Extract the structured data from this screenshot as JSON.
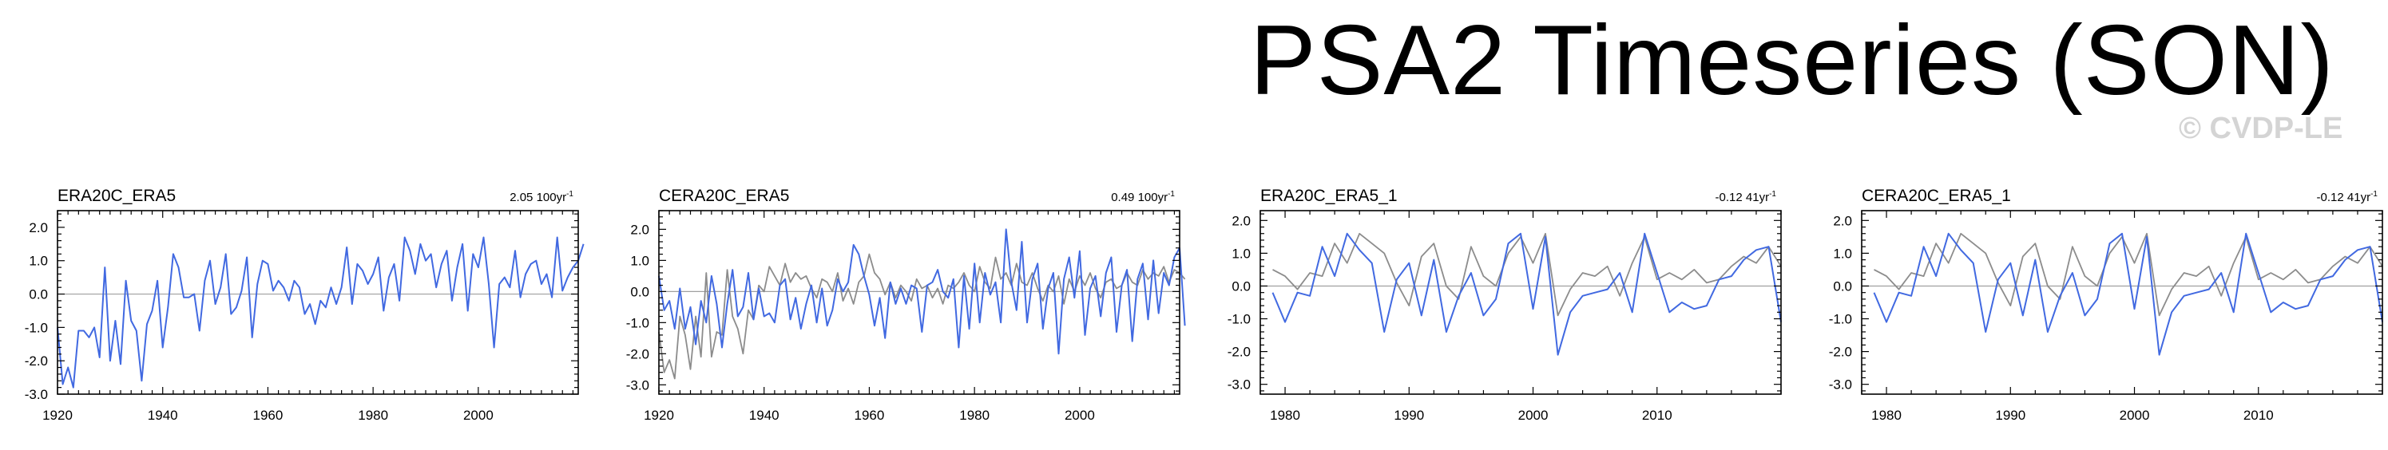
{
  "page": {
    "title": "PSA2 Timeseries (SON)",
    "watermark": "© CVDP-LE"
  },
  "colors": {
    "blue": "#4169e1",
    "gray": "#8c8c8c",
    "zero_line": "#a0a0a0"
  },
  "chart_data": [
    {
      "type": "line",
      "title": "ERA20C_ERA5",
      "trend_text": "2.05 100yr",
      "trend_exp": "-1",
      "xlim": [
        1920,
        2019
      ],
      "ylim": [
        -3.0,
        2.5
      ],
      "xticks": [
        "1920",
        "1940",
        "1960",
        "1980",
        "2000"
      ],
      "xtick_values": [
        1920,
        1940,
        1960,
        1980,
        2000
      ],
      "yticks": [
        "2.0",
        "1.0",
        "0.0",
        "-1.0",
        "-2.0",
        "-3.0"
      ],
      "ytick_values": [
        2.0,
        1.0,
        0.0,
        -1.0,
        -2.0,
        -3.0
      ],
      "series": [
        {
          "color": "#4169e1",
          "x_start": 1920,
          "values": [
            -1.0,
            -2.7,
            -2.2,
            -2.8,
            -1.1,
            -1.1,
            -1.3,
            -1.0,
            -1.9,
            0.8,
            -2.0,
            -0.8,
            -2.1,
            0.4,
            -0.8,
            -1.1,
            -2.6,
            -0.9,
            -0.5,
            0.4,
            -1.6,
            -0.4,
            1.2,
            0.8,
            -0.1,
            -0.1,
            0.0,
            -1.1,
            0.4,
            1.0,
            -0.3,
            0.2,
            1.2,
            -0.6,
            -0.4,
            0.1,
            1.1,
            -1.3,
            0.3,
            1.0,
            0.9,
            0.1,
            0.4,
            0.2,
            -0.2,
            0.4,
            0.2,
            -0.6,
            -0.3,
            -0.9,
            -0.2,
            -0.4,
            0.2,
            -0.3,
            0.2,
            1.4,
            -0.3,
            0.9,
            0.7,
            0.3,
            0.6,
            1.1,
            -0.5,
            0.5,
            0.9,
            -0.2,
            1.7,
            1.3,
            0.6,
            1.5,
            1.0,
            1.2,
            0.2,
            0.9,
            1.3,
            -0.2,
            0.8,
            1.5,
            -0.5,
            1.2,
            0.8,
            1.7,
            0.3,
            -1.6,
            0.3,
            0.5,
            0.2,
            1.3,
            -0.1,
            0.6,
            0.9,
            1.0,
            0.3,
            0.6,
            -0.1,
            1.7,
            0.1,
            0.5,
            0.8,
            1.0,
            1.5
          ]
        }
      ]
    },
    {
      "type": "line",
      "title": "CERA20C_ERA5",
      "trend_text": "0.49 100yr",
      "trend_exp": "-1",
      "xlim": [
        1920,
        2019
      ],
      "ylim": [
        -3.3,
        2.6
      ],
      "xticks": [
        "1920",
        "1940",
        "1960",
        "1980",
        "2000"
      ],
      "xtick_values": [
        1920,
        1940,
        1960,
        1980,
        2000
      ],
      "yticks": [
        "2.0",
        "1.0",
        "0.0",
        "-1.0",
        "-2.0",
        "-3.0"
      ],
      "ytick_values": [
        2.0,
        1.0,
        0.0,
        -1.0,
        -2.0,
        -3.0
      ],
      "series": [
        {
          "color": "#8c8c8c",
          "x_start": 1920,
          "values": [
            -1.3,
            -2.6,
            -2.2,
            -2.8,
            -0.8,
            -1.4,
            -2.5,
            -0.8,
            -2.1,
            0.6,
            -2.1,
            -1.3,
            -1.4,
            0.7,
            -0.8,
            -1.2,
            -2.0,
            -0.6,
            -0.9,
            0.2,
            0.0,
            0.8,
            0.5,
            0.2,
            0.9,
            0.3,
            0.6,
            0.4,
            0.5,
            0.1,
            -0.2,
            0.4,
            0.3,
            0.0,
            0.6,
            -0.3,
            0.1,
            -0.4,
            0.3,
            0.5,
            1.2,
            0.6,
            0.4,
            -0.1,
            0.3,
            -0.2,
            0.2,
            0.0,
            -0.3,
            0.4,
            0.1,
            0.2,
            -0.2,
            0.1,
            -0.4,
            0.2,
            0.1,
            0.3,
            0.6,
            0.2,
            0.0,
            0.8,
            0.3,
            0.1,
            1.1,
            0.4,
            0.6,
            0.2,
            0.9,
            0.3,
            0.2,
            0.6,
            0.1,
            -0.3,
            0.2,
            0.0,
            0.5,
            -0.4,
            0.4,
            0.0,
            0.5,
            0.2,
            0.6,
            0.1,
            -0.2,
            0.3,
            0.4,
            0.1,
            0.2,
            0.6,
            0.3,
            0.2,
            0.7,
            0.4,
            0.6,
            0.5,
            0.8,
            0.3,
            0.7,
            0.6,
            0.4
          ]
        },
        {
          "color": "#4169e1",
          "x_start": 1920,
          "values": [
            0.5,
            -0.6,
            -0.3,
            -1.2,
            0.1,
            -1.2,
            -0.5,
            -1.7,
            -0.3,
            -1.0,
            0.5,
            -0.4,
            -1.8,
            -0.4,
            0.7,
            -0.8,
            -0.5,
            0.6,
            -0.9,
            0.1,
            -0.8,
            -0.7,
            -1.0,
            0.2,
            0.4,
            -0.9,
            -0.2,
            -1.2,
            -0.4,
            0.2,
            -1.0,
            0.1,
            -1.1,
            -0.6,
            0.4,
            0.0,
            0.3,
            1.5,
            1.2,
            0.5,
            -0.1,
            -1.1,
            -0.2,
            -1.5,
            0.3,
            -0.4,
            0.1,
            -0.4,
            0.2,
            0.1,
            -1.3,
            0.2,
            0.3,
            0.7,
            0.0,
            -0.2,
            0.4,
            -1.8,
            0.5,
            -1.2,
            0.9,
            -1.0,
            0.6,
            -0.1,
            0.3,
            -1.0,
            2.0,
            0.3,
            -0.6,
            1.6,
            -1.0,
            0.4,
            0.9,
            -1.2,
            0.1,
            0.6,
            -2.0,
            0.4,
            1.1,
            -0.2,
            1.3,
            -1.4,
            0.1,
            0.5,
            -0.8,
            0.6,
            1.1,
            -1.3,
            0.2,
            0.7,
            -1.6,
            0.4,
            0.9,
            -0.9,
            1.0,
            -0.7,
            0.6,
            0.2,
            1.1,
            1.4,
            -1.1
          ]
        }
      ]
    },
    {
      "type": "line",
      "title": "ERA20C_ERA5_1",
      "trend_text": "-0.12 41yr",
      "trend_exp": "-1",
      "xlim": [
        1978,
        2020
      ],
      "ylim": [
        -3.3,
        2.3
      ],
      "xticks": [
        "1980",
        "1990",
        "2000",
        "2010"
      ],
      "xtick_values": [
        1980,
        1990,
        2000,
        2010
      ],
      "yticks": [
        "2.0",
        "1.0",
        "0.0",
        "-1.0",
        "-2.0",
        "-3.0"
      ],
      "ytick_values": [
        2.0,
        1.0,
        0.0,
        -1.0,
        -2.0,
        -3.0
      ],
      "series": [
        {
          "color": "#8c8c8c",
          "x_start": 1979,
          "values": [
            0.5,
            0.3,
            -0.1,
            0.4,
            0.3,
            1.3,
            0.7,
            1.6,
            1.3,
            1.0,
            0.1,
            -0.6,
            0.9,
            1.3,
            0.0,
            -0.4,
            1.2,
            0.3,
            0.0,
            1.0,
            1.5,
            0.7,
            1.6,
            -0.9,
            -0.1,
            0.4,
            0.3,
            0.6,
            -0.3,
            0.7,
            1.5,
            0.2,
            0.4,
            0.2,
            0.5,
            0.1,
            0.2,
            0.6,
            0.9,
            0.7,
            1.2,
            0.6
          ]
        },
        {
          "color": "#4169e1",
          "x_start": 1979,
          "values": [
            -0.2,
            -1.1,
            -0.2,
            -0.3,
            1.2,
            0.3,
            1.6,
            1.1,
            0.7,
            -1.4,
            0.2,
            0.7,
            -0.9,
            0.8,
            -1.4,
            -0.3,
            0.4,
            -0.9,
            -0.4,
            1.3,
            1.6,
            -0.7,
            1.5,
            -2.1,
            -0.8,
            -0.3,
            -0.2,
            -0.1,
            0.4,
            -0.8,
            1.6,
            0.4,
            -0.8,
            -0.5,
            -0.7,
            -0.6,
            0.2,
            0.3,
            0.8,
            1.1,
            1.2,
            -1.1
          ]
        }
      ]
    },
    {
      "type": "line",
      "title": "CERA20C_ERA5_1",
      "trend_text": "-0.12 41yr",
      "trend_exp": "-1",
      "xlim": [
        1978,
        2020
      ],
      "ylim": [
        -3.3,
        2.3
      ],
      "xticks": [
        "1980",
        "1990",
        "2000",
        "2010"
      ],
      "xtick_values": [
        1980,
        1990,
        2000,
        2010
      ],
      "yticks": [
        "2.0",
        "1.0",
        "0.0",
        "-1.0",
        "-2.0",
        "-3.0"
      ],
      "ytick_values": [
        2.0,
        1.0,
        0.0,
        -1.0,
        -2.0,
        -3.0
      ],
      "series": [
        {
          "color": "#8c8c8c",
          "x_start": 1979,
          "values": [
            0.5,
            0.3,
            -0.1,
            0.4,
            0.3,
            1.3,
            0.7,
            1.6,
            1.3,
            1.0,
            0.1,
            -0.6,
            0.9,
            1.3,
            0.0,
            -0.4,
            1.2,
            0.3,
            0.0,
            1.0,
            1.5,
            0.7,
            1.6,
            -0.9,
            -0.1,
            0.4,
            0.3,
            0.6,
            -0.3,
            0.7,
            1.5,
            0.2,
            0.4,
            0.2,
            0.5,
            0.1,
            0.2,
            0.6,
            0.9,
            0.7,
            1.2,
            0.6
          ]
        },
        {
          "color": "#4169e1",
          "x_start": 1979,
          "values": [
            -0.2,
            -1.1,
            -0.2,
            -0.3,
            1.2,
            0.3,
            1.6,
            1.1,
            0.7,
            -1.4,
            0.2,
            0.7,
            -0.9,
            0.8,
            -1.4,
            -0.3,
            0.4,
            -0.9,
            -0.4,
            1.3,
            1.6,
            -0.7,
            1.5,
            -2.1,
            -0.8,
            -0.3,
            -0.2,
            -0.1,
            0.4,
            -0.8,
            1.6,
            0.4,
            -0.8,
            -0.5,
            -0.7,
            -0.6,
            0.2,
            0.3,
            0.8,
            1.1,
            1.2,
            -1.1
          ]
        }
      ]
    }
  ]
}
